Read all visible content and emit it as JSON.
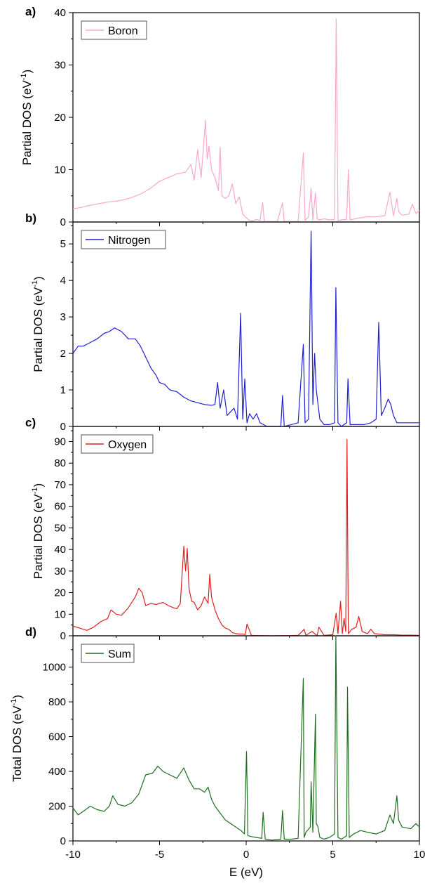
{
  "chart_data": [
    {
      "panel_label": "a)",
      "type": "line",
      "ylabel_main": "Partial  DOS (eV",
      "ylabel_sup": "-1",
      "ylabel_end": ")",
      "xlim": [
        -10,
        10
      ],
      "ylim": [
        0,
        40
      ],
      "yticks": [
        0,
        10,
        20,
        30,
        40
      ],
      "ytick_minor": 5,
      "legend_position": "top-left",
      "series": [
        {
          "name": "Boron",
          "color": "#f7a8cc",
          "x": [
            -10,
            -9.5,
            -9,
            -8.5,
            -8,
            -7.5,
            -7,
            -6.5,
            -6,
            -5.5,
            -5,
            -4.5,
            -4,
            -3.5,
            -3.2,
            -3,
            -2.8,
            -2.6,
            -2.45,
            -2.35,
            -2.25,
            -2.15,
            -2,
            -1.8,
            -1.6,
            -1.5,
            -1.4,
            -1.2,
            -1,
            -0.8,
            -0.6,
            -0.4,
            -0.2,
            0,
            0.2,
            0.4,
            0.6,
            0.8,
            0.95,
            1.05,
            1.4,
            1.8,
            2.1,
            2.2,
            2.6,
            3.0,
            3.3,
            3.4,
            3.6,
            3.75,
            3.85,
            4.0,
            4.1,
            4.2,
            4.5,
            4.8,
            5.1,
            5.2,
            5.3,
            5.5,
            5.8,
            5.9,
            6.0,
            6.3,
            6.6,
            7.0,
            7.5,
            8.0,
            8.3,
            8.5,
            8.7,
            8.8,
            9.0,
            9.4,
            9.6,
            9.8,
            10
          ],
          "y": [
            2.5,
            2.8,
            3.2,
            3.5,
            3.8,
            4.0,
            4.3,
            4.8,
            5.5,
            6.5,
            7.8,
            8.5,
            9.2,
            9.5,
            11.0,
            8.0,
            13.8,
            8.5,
            15.0,
            19.5,
            12.0,
            14.5,
            10.0,
            8.5,
            6.0,
            14.3,
            5.0,
            4.5,
            5.0,
            7.3,
            3.5,
            4.8,
            1.5,
            0.8,
            0.3,
            0.2,
            0.5,
            0.3,
            3.7,
            0.1,
            0.1,
            0.1,
            3.7,
            0.1,
            0.1,
            0.1,
            13.2,
            0.3,
            1.0,
            6.4,
            0.4,
            5.6,
            0.6,
            0.4,
            0.6,
            0.4,
            0.5,
            38.8,
            0.3,
            0.4,
            0.5,
            10.0,
            0.4,
            0.6,
            0.8,
            1.0,
            1.0,
            1.2,
            5.7,
            1.2,
            4.5,
            2.0,
            1.3,
            1.5,
            3.4,
            1.6,
            2.2
          ]
        }
      ]
    },
    {
      "panel_label": "b)",
      "type": "line",
      "ylabel_main": "Partial  DOS (eV",
      "ylabel_sup": "-1",
      "ylabel_end": ")",
      "xlim": [
        -10,
        10
      ],
      "ylim": [
        0,
        5.6
      ],
      "yticks": [
        0,
        1,
        2,
        3,
        4,
        5
      ],
      "ytick_minor": 0.5,
      "legend_position": "top-left",
      "series": [
        {
          "name": "Nitrogen",
          "color": "#1f1fd6",
          "x": [
            -10,
            -9.7,
            -9.4,
            -9,
            -8.6,
            -8.2,
            -7.9,
            -7.6,
            -7.2,
            -6.8,
            -6.4,
            -6.1,
            -5.8,
            -5.5,
            -5.2,
            -5.0,
            -4.7,
            -4.4,
            -4.0,
            -3.6,
            -3.2,
            -2.8,
            -2.4,
            -2.0,
            -1.8,
            -1.65,
            -1.5,
            -1.3,
            -1.1,
            -0.9,
            -0.7,
            -0.5,
            -0.32,
            -0.2,
            -0.08,
            0.05,
            0.2,
            0.4,
            0.6,
            0.8,
            1.0,
            1.2,
            1.6,
            2.0,
            2.1,
            2.2,
            2.6,
            3.0,
            3.3,
            3.4,
            3.6,
            3.75,
            3.85,
            3.95,
            4.05,
            4.15,
            4.25,
            4.5,
            4.8,
            5.1,
            5.18,
            5.3,
            5.5,
            5.8,
            5.88,
            6.0,
            6.4,
            6.8,
            7.2,
            7.5,
            7.65,
            7.8,
            8.0,
            8.2,
            8.35,
            8.5,
            8.7,
            9.0,
            9.5,
            10
          ],
          "y": [
            2.0,
            2.2,
            2.2,
            2.3,
            2.4,
            2.55,
            2.6,
            2.7,
            2.6,
            2.4,
            2.4,
            2.2,
            1.9,
            1.6,
            1.4,
            1.2,
            1.15,
            1.0,
            0.95,
            0.8,
            0.7,
            0.65,
            0.6,
            0.58,
            0.6,
            1.2,
            0.5,
            1.0,
            0.3,
            0.4,
            0.5,
            0.2,
            3.1,
            0.2,
            1.3,
            0.1,
            0.35,
            0.2,
            0.35,
            0.1,
            0.05,
            0.0,
            0.0,
            0.0,
            0.85,
            0.0,
            0.05,
            0.1,
            2.25,
            0.1,
            0.2,
            5.35,
            0.6,
            2.0,
            1.0,
            0.6,
            0.2,
            0.05,
            0.05,
            0.1,
            3.8,
            0.1,
            0.0,
            0.1,
            1.3,
            0.05,
            0.05,
            0.05,
            0.1,
            0.2,
            2.85,
            0.3,
            0.5,
            0.75,
            0.6,
            0.3,
            0.1,
            0.1,
            0.1,
            0.1
          ]
        }
      ]
    },
    {
      "panel_label": "c)",
      "type": "line",
      "ylabel_main": "Partial  DOS (eV",
      "ylabel_sup": "-1",
      "ylabel_end": ")",
      "xlim": [
        -10,
        10
      ],
      "ylim": [
        0,
        97
      ],
      "yticks": [
        0,
        10,
        20,
        30,
        40,
        50,
        60,
        70,
        80,
        90
      ],
      "ytick_minor": 5,
      "legend_position": "top-left",
      "series": [
        {
          "name": "Oxygen",
          "color": "#dd2020",
          "x": [
            -10,
            -9.6,
            -9.2,
            -8.8,
            -8.4,
            -8.0,
            -7.8,
            -7.5,
            -7.2,
            -6.8,
            -6.4,
            -6.2,
            -6.0,
            -5.8,
            -5.5,
            -5.2,
            -4.8,
            -4.5,
            -4.2,
            -4.0,
            -3.8,
            -3.6,
            -3.5,
            -3.4,
            -3.3,
            -3.15,
            -3.0,
            -2.8,
            -2.6,
            -2.4,
            -2.2,
            -2.1,
            -2.0,
            -1.8,
            -1.6,
            -1.4,
            -1.2,
            -1.0,
            -0.8,
            -0.6,
            -0.4,
            -0.2,
            -0.05,
            0.05,
            0.3,
            0.6,
            1.0,
            1.5,
            2.0,
            2.5,
            3.0,
            3.35,
            3.45,
            3.8,
            4.1,
            4.2,
            4.5,
            5.0,
            5.2,
            5.3,
            5.45,
            5.55,
            5.65,
            5.75,
            5.82,
            5.9,
            6.1,
            6.35,
            6.5,
            6.7,
            7.0,
            7.2,
            7.4,
            8.0,
            8.5,
            9.0,
            9.5,
            10
          ],
          "y": [
            4.5,
            3.5,
            2.5,
            4.0,
            6.5,
            8.0,
            12.0,
            10.0,
            9.5,
            13.0,
            18.0,
            22.0,
            20.0,
            14.0,
            15.0,
            14.5,
            15.5,
            14.0,
            13.0,
            12.5,
            15.0,
            41.5,
            30.0,
            40.5,
            22.0,
            16.0,
            15.5,
            12.0,
            14.0,
            18.0,
            15.0,
            28.5,
            18.0,
            12.0,
            8.0,
            5.0,
            3.5,
            3.0,
            1.5,
            1.0,
            0.8,
            0.8,
            0.6,
            5.5,
            0.2,
            0.1,
            0.1,
            0.0,
            0.1,
            0.1,
            0.2,
            3.0,
            0.2,
            2.0,
            0.1,
            4.0,
            0.2,
            0.5,
            10.5,
            1.0,
            16.0,
            1.0,
            8.0,
            2.0,
            91.0,
            1.0,
            3.0,
            4.0,
            9.0,
            2.0,
            1.0,
            3.0,
            1.0,
            0.5,
            0.5,
            0.3,
            0.3,
            0.2
          ]
        }
      ]
    },
    {
      "panel_label": "d)",
      "type": "line",
      "ylabel_main": "Total DOS (eV",
      "ylabel_sup": "-1",
      "ylabel_end": ")",
      "xlabel": "E (eV)",
      "xlim": [
        -10,
        10
      ],
      "xticks": [
        -10,
        -5,
        0,
        5,
        10
      ],
      "ylim": [
        0,
        1180
      ],
      "yticks": [
        0,
        200,
        400,
        600,
        800,
        1000
      ],
      "ytick_minor": 100,
      "legend_position": "top-left",
      "series": [
        {
          "name": "Sum",
          "color": "#1f6e1f",
          "x": [
            -10,
            -9.7,
            -9.4,
            -9.0,
            -8.6,
            -8.2,
            -7.9,
            -7.7,
            -7.4,
            -7.0,
            -6.6,
            -6.2,
            -5.8,
            -5.4,
            -5.1,
            -4.8,
            -4.4,
            -4.0,
            -3.6,
            -3.3,
            -3.0,
            -2.7,
            -2.4,
            -2.2,
            -2.0,
            -1.8,
            -1.5,
            -1.2,
            -0.9,
            -0.6,
            -0.3,
            -0.1,
            0.02,
            0.1,
            0.3,
            0.6,
            0.9,
            0.98,
            1.1,
            1.5,
            2.0,
            2.1,
            2.2,
            2.6,
            3.0,
            3.3,
            3.35,
            3.45,
            3.7,
            3.75,
            3.85,
            4.0,
            4.05,
            4.15,
            4.25,
            4.5,
            4.8,
            5.1,
            5.18,
            5.3,
            5.5,
            5.8,
            5.85,
            5.95,
            6.2,
            6.6,
            7.0,
            7.5,
            8.0,
            8.3,
            8.5,
            8.7,
            8.8,
            9.0,
            9.5,
            9.8,
            10
          ],
          "y": [
            190,
            150,
            170,
            200,
            180,
            170,
            200,
            260,
            210,
            200,
            220,
            270,
            380,
            390,
            430,
            400,
            380,
            360,
            420,
            350,
            300,
            300,
            280,
            310,
            240,
            200,
            160,
            120,
            100,
            80,
            60,
            40,
            515,
            30,
            25,
            20,
            15,
            165,
            10,
            5,
            10,
            175,
            10,
            10,
            15,
            935,
            20,
            50,
            80,
            340,
            50,
            730,
            100,
            80,
            20,
            10,
            20,
            40,
            1180,
            20,
            10,
            30,
            885,
            20,
            40,
            60,
            50,
            40,
            60,
            150,
            100,
            260,
            120,
            80,
            70,
            100,
            80
          ]
        }
      ]
    }
  ]
}
